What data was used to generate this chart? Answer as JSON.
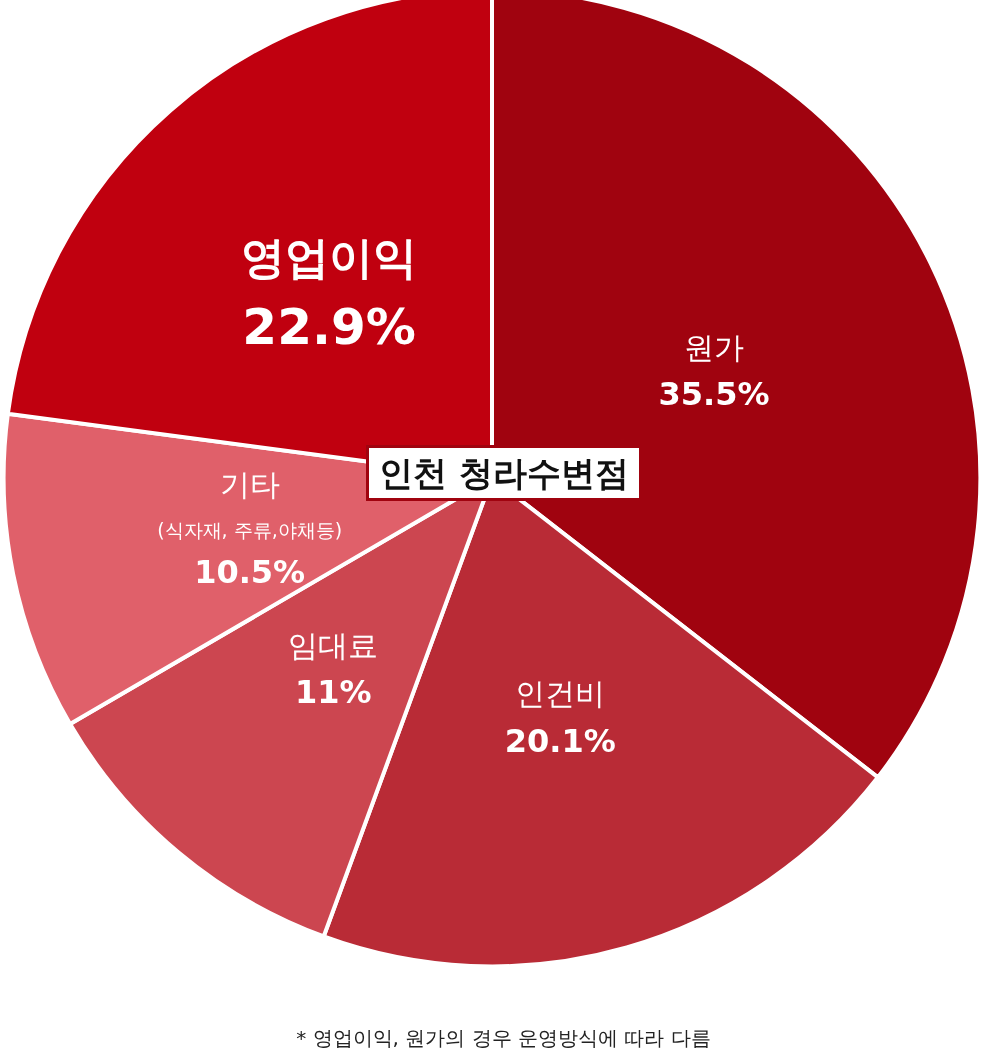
{
  "chart_data": {
    "type": "pie",
    "title": "인천 청라수변점",
    "categories": [
      "원가",
      "인건비",
      "임대료",
      "기타",
      "영업이익"
    ],
    "values": [
      35.5,
      20.1,
      11,
      10.5,
      22.9
    ],
    "value_labels": [
      "35.5%",
      "20.1%",
      "11%",
      "10.5%",
      "22.9%"
    ],
    "colors": [
      "#a0030f",
      "#b92b36",
      "#cc4650",
      "#e0606a",
      "#c0000f"
    ],
    "annotations": [
      {
        "text": "(식자재, 주류,야채등)",
        "x": "기타"
      },
      "* 영업이익, 원가의 경우 운영방식에 따라 다름"
    ],
    "legend": false
  }
}
